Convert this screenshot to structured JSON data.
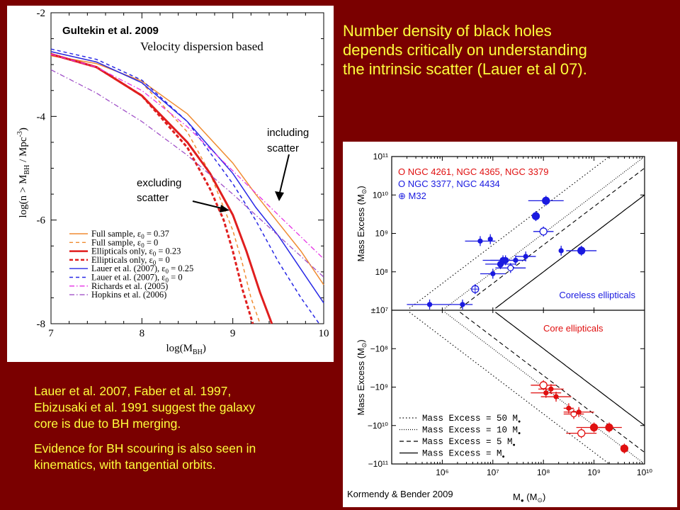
{
  "slide": {
    "headline_lines": [
      "Number density of black holes",
      "depends critically on understanding",
      "the intrinsic scatter (Lauer et al 07)."
    ],
    "body_lines_1": [
      "Lauer et al. 2007,  Faber et al. 1997,",
      "Ebizusaki et al. 1991 suggest the galaxy",
      "core is due to BH merging."
    ],
    "body_lines_2": [
      "Evidence for BH scouring is also seen in",
      "kinematics, with tangential orbits."
    ],
    "text_color": "#ffff3c",
    "background": "#7a0000"
  },
  "chart_data": [
    {
      "type": "line",
      "source_label": "Gultekin et al. 2009",
      "title": "Velocity dispersion based",
      "xlabel": "log(M",
      "xlabel_sub": "BH",
      "xlabel_end": ")",
      "ylabel": "log(n > M",
      "ylabel_sub": "BH",
      "ylabel_end": " / Mpc",
      "ylabel_sup": "-3",
      "ylabel_close": ")",
      "xlim": [
        7,
        10
      ],
      "ylim": [
        -8,
        -2
      ],
      "x_ticks": [
        "7",
        "8",
        "9",
        "10"
      ],
      "y_ticks": [
        "-2",
        "-4",
        "-6",
        "-8"
      ],
      "annotations": {
        "including": [
          "including",
          "scatter"
        ],
        "excluding": [
          "excluding",
          "scatter"
        ]
      },
      "series": [
        {
          "name": "Full sample, ε",
          "sub": "0",
          "eq": " = 0.37",
          "color": "#f08c32",
          "dash": "",
          "width": 1.5,
          "x": [
            7.0,
            7.5,
            8.0,
            8.5,
            9.0,
            9.25,
            9.5,
            9.75,
            10.0
          ],
          "y": [
            -2.83,
            -2.98,
            -3.32,
            -3.95,
            -4.9,
            -5.5,
            -6.05,
            -6.6,
            -7.25
          ]
        },
        {
          "name": "Full sample, ε",
          "sub": "0",
          "eq": " = 0",
          "color": "#f08c32",
          "dash": "5,4",
          "width": 1.5,
          "x": [
            7.0,
            7.5,
            8.0,
            8.5,
            8.75,
            9.0,
            9.1,
            9.2,
            9.3
          ],
          "y": [
            -2.75,
            -2.95,
            -3.35,
            -4.3,
            -5.1,
            -6.2,
            -6.8,
            -7.5,
            -8.0
          ]
        },
        {
          "name": "Ellipticals only, ε",
          "sub": "0",
          "eq": " = 0.23",
          "color": "#e01e1e",
          "dash": "",
          "width": 3,
          "x": [
            7.0,
            7.5,
            8.0,
            8.5,
            8.75,
            9.0,
            9.15,
            9.3,
            9.43
          ],
          "y": [
            -2.8,
            -3.05,
            -3.6,
            -4.5,
            -5.1,
            -5.9,
            -6.6,
            -7.4,
            -8.0
          ]
        },
        {
          "name": "Ellipticals only, ε",
          "sub": "0",
          "eq": " = 0",
          "color": "#e01e1e",
          "dash": "5,3",
          "width": 3,
          "x": [
            7.0,
            7.5,
            8.0,
            8.5,
            8.75,
            8.9,
            9.0,
            9.1,
            9.22
          ],
          "y": [
            -2.8,
            -3.05,
            -3.6,
            -4.6,
            -5.4,
            -6.0,
            -6.6,
            -7.3,
            -8.0
          ]
        },
        {
          "name": "Lauer et al. (2007), ε",
          "sub": "0",
          "eq": " = 0.25",
          "color": "#2828e6",
          "dash": "",
          "width": 1.5,
          "x": [
            7.0,
            7.5,
            8.0,
            8.5,
            9.0,
            9.25,
            9.5,
            9.75,
            10.0
          ],
          "y": [
            -2.75,
            -2.95,
            -3.35,
            -4.1,
            -5.1,
            -5.75,
            -6.3,
            -6.95,
            -7.6
          ]
        },
        {
          "name": "Lauer et al. (2007), ε",
          "sub": "0",
          "eq": " = 0",
          "color": "#2828e6",
          "dash": "5,4",
          "width": 1.5,
          "x": [
            7.0,
            7.5,
            8.0,
            8.5,
            9.0,
            9.25,
            9.5,
            9.75,
            9.95
          ],
          "y": [
            -2.7,
            -2.9,
            -3.3,
            -4.1,
            -5.3,
            -6.0,
            -6.8,
            -7.5,
            -8.0
          ]
        },
        {
          "name": "Richards et al. (2005)",
          "sub": "",
          "eq": "",
          "color": "#e632e6",
          "dash": "7,3,1.5,3",
          "width": 1.3,
          "x": [
            7.0,
            7.5,
            8.0,
            8.5,
            9.0,
            9.5,
            10.0
          ],
          "y": [
            -2.8,
            -3.05,
            -3.5,
            -4.2,
            -5.05,
            -5.9,
            -6.75
          ]
        },
        {
          "name": "Hopkins et al. (2006)",
          "sub": "",
          "eq": "",
          "color": "#a050c8",
          "dash": "7,3,1.5,3",
          "width": 1.3,
          "x": [
            7.0,
            7.5,
            8.0,
            8.5,
            9.0,
            9.5,
            10.0
          ],
          "y": [
            -3.1,
            -3.55,
            -4.1,
            -4.75,
            -5.5,
            -6.3,
            -7.1
          ]
        }
      ]
    },
    {
      "type": "scatter",
      "source_label": "Kormendy & Bender 2009",
      "ylabel": "Mass Excess  (M",
      "ylabel_sub": "⊙",
      "ylabel_end": ")",
      "xlabel": "M",
      "xlabel_sub": "●",
      "xlabel_unit": "(M",
      "xlabel_unit_sub": "⊙",
      "xlabel_unit_end": ")",
      "x_range_log10": [
        5,
        10
      ],
      "x_ticks": [
        "10⁶",
        "10⁷",
        "10⁸",
        "10⁹",
        "10¹⁰"
      ],
      "upper_y_ticks": [
        "10¹¹",
        "10¹⁰",
        "10⁹",
        "10⁸"
      ],
      "center_tick": "±10⁷",
      "lower_y_ticks": [
        "−10⁸",
        "−10⁹",
        "−10¹⁰",
        "−10¹¹"
      ],
      "legend_top": [
        {
          "text": "O NGC 4261, NGC 4365, NGC 3379",
          "color": "#e01010"
        },
        {
          "text": "O NGC 3377, NGC 4434",
          "color": "#1a1ae0"
        },
        {
          "text": "⊕ M32",
          "color": "#1a1ae0"
        }
      ],
      "upper_label": "Coreless ellipticals",
      "lower_label": "Core ellipticals",
      "lines_legend": [
        {
          "text": "Mass Excess = 50 M",
          "dash": "1.5,3"
        },
        {
          "text": "Mass Excess = 10 M",
          "dash": "1,2"
        },
        {
          "text": "Mass Excess =   5 M",
          "dash": "6,4"
        },
        {
          "text": "Mass Excess =      M",
          "dash": ""
        }
      ],
      "coreless_points": [
        {
          "logM": 5.75,
          "logE": 7.15,
          "xerr": 0.45,
          "filled": true,
          "size": 3
        },
        {
          "logM": 6.4,
          "logE": 7.15,
          "xerr": 0.2,
          "filled": true,
          "size": 3
        },
        {
          "logM": 6.65,
          "logE": 7.55,
          "xerr": 0,
          "filled": false,
          "cross": true,
          "size": 5
        },
        {
          "logM": 6.75,
          "logE": 8.8,
          "xerr": 0.3,
          "filled": true,
          "size": 3
        },
        {
          "logM": 6.95,
          "logE": 8.85,
          "xerr": 0,
          "filled": true,
          "size": 3
        },
        {
          "logM": 7.0,
          "logE": 7.95,
          "xerr": 0.25,
          "filled": true,
          "size": 3
        },
        {
          "logM": 7.15,
          "logE": 8.2,
          "xerr": 0.3,
          "filled": true,
          "size": 4
        },
        {
          "logM": 7.2,
          "logE": 8.3,
          "xerr": 0.4,
          "filled": true,
          "size": 4
        },
        {
          "logM": 7.25,
          "logE": 8.3,
          "xerr": 0.3,
          "filled": true,
          "size": 4
        },
        {
          "logM": 7.35,
          "logE": 8.1,
          "xerr": 0.3,
          "filled": false,
          "size": 4
        },
        {
          "logM": 7.45,
          "logE": 8.3,
          "xerr": 0.2,
          "filled": true,
          "size": 3
        },
        {
          "logM": 7.65,
          "logE": 8.4,
          "xerr": 0.2,
          "filled": true,
          "size": 3
        },
        {
          "logM": 7.85,
          "logE": 9.45,
          "xerr": 0,
          "filled": true,
          "size": 5
        },
        {
          "logM": 8.05,
          "logE": 9.85,
          "xerr": 0.35,
          "filled": true,
          "size": 5
        },
        {
          "logM": 8.0,
          "logE": 9.05,
          "xerr": 0.2,
          "filled": false,
          "size": 5
        },
        {
          "logM": 8.35,
          "logE": 8.55,
          "xerr": 0,
          "filled": true,
          "size": 3
        },
        {
          "logM": 8.75,
          "logE": 8.55,
          "xerr": 0.3,
          "filled": true,
          "size": 5
        }
      ],
      "core_points": [
        {
          "logM": 8.0,
          "logE": 8.95,
          "xerr": 0.25,
          "filled": false,
          "size": 5
        },
        {
          "logM": 8.05,
          "logE": 9.15,
          "xerr": 0.3,
          "filled": true,
          "size": 3
        },
        {
          "logM": 8.15,
          "logE": 9.05,
          "xerr": 0.25,
          "filled": true,
          "size": 3
        },
        {
          "logM": 8.25,
          "logE": 9.25,
          "xerr": 0.3,
          "filled": true,
          "size": 3
        },
        {
          "logM": 8.5,
          "logE": 9.55,
          "xerr": 0.1,
          "filled": true,
          "size": 3
        },
        {
          "logM": 8.6,
          "logE": 9.7,
          "xerr": 0.2,
          "filled": false,
          "size": 4
        },
        {
          "logM": 8.7,
          "logE": 9.65,
          "xerr": 0.3,
          "filled": true,
          "size": 3
        },
        {
          "logM": 8.75,
          "logE": 10.2,
          "xerr": 0.3,
          "filled": false,
          "size": 5
        },
        {
          "logM": 9.0,
          "logE": 10.05,
          "xerr": 0.35,
          "filled": true,
          "size": 5
        },
        {
          "logM": 9.3,
          "logE": 10.05,
          "xerr": 0.25,
          "filled": true,
          "size": 5
        },
        {
          "logM": 9.6,
          "logE": 10.6,
          "xerr": 0,
          "filled": true,
          "size": 5
        }
      ]
    }
  ]
}
